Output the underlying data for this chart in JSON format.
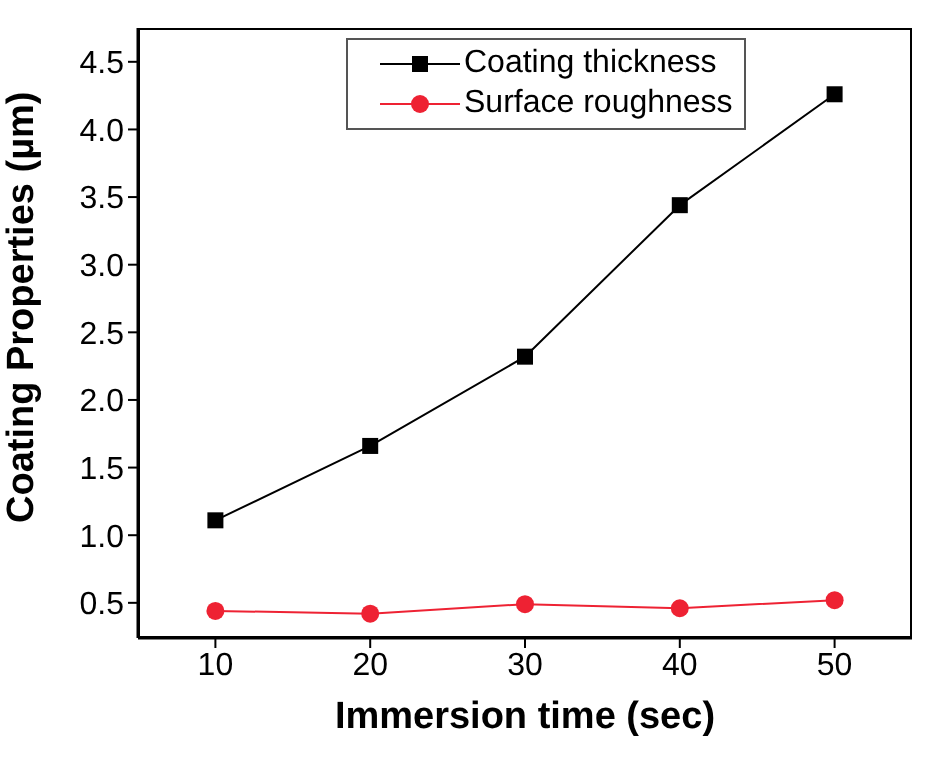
{
  "chart_data": {
    "type": "line",
    "xlabel": "Immersion time (sec)",
    "ylabel": "Coating Properties (µm)",
    "x": [
      10,
      20,
      30,
      40,
      50
    ],
    "series": [
      {
        "name": "Coating thickness",
        "color": "#000000",
        "marker": "square",
        "values": [
          1.11,
          1.66,
          2.32,
          3.44,
          4.26
        ]
      },
      {
        "name": "Surface roughness",
        "color": "#ee2233",
        "marker": "circle",
        "values": [
          0.44,
          0.42,
          0.49,
          0.46,
          0.52
        ]
      }
    ],
    "xlim": [
      5,
      55
    ],
    "xticks": [
      10,
      20,
      30,
      40,
      50
    ],
    "ylim": [
      0.24,
      4.75
    ],
    "yticks": [
      0.5,
      {
        "value": 1,
        "label": "1.0"
      },
      1.5,
      {
        "value": 2,
        "label": "2.0"
      },
      2.5,
      {
        "value": 3,
        "label": "3.0"
      },
      3.5,
      {
        "value": 4,
        "label": "4.0"
      },
      4.5
    ],
    "grid": false,
    "legend": "top",
    "line_style": "solid"
  }
}
